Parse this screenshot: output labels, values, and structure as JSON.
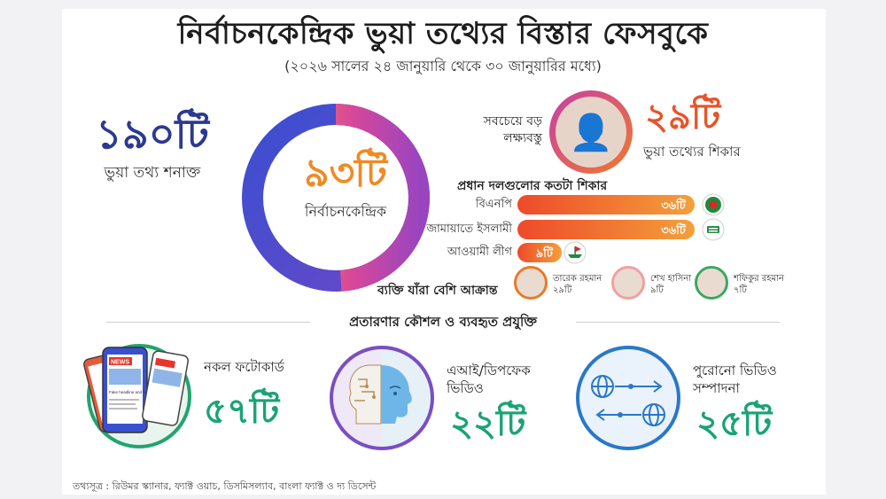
{
  "header": {
    "title": "নির্বাচনকেন্দ্রিক ভুয়া তথ্যের বিস্তার ফেসবুকে",
    "subtitle": "(২০২৬ সালের ২৪ জানুয়ারি থেকে ৩০ জানুয়ারির মধ্যে)"
  },
  "total": {
    "value": "১৯০টি",
    "label": "ভুয়া তথ্য শনাক্ত"
  },
  "election": {
    "value": "৯৩টি",
    "label": "নির্বাচনকেন্দ্রিক",
    "fraction": 0.49
  },
  "target": {
    "label_line1": "সবচেয়ে বড়",
    "label_line2": "লক্ষ্যবস্তু",
    "value": "২৯টি",
    "label": "ভুয়া তথ্যের শিকার",
    "portrait_icon": "person-portrait"
  },
  "parties": {
    "title": "প্রধান দলগুলোর কতটা শিকার",
    "items": [
      {
        "name": "বিএনপি",
        "value": "৩৬টি",
        "count": 36,
        "logo": "bnp-logo"
      },
      {
        "name": "জামায়াতে ইসলামী",
        "value": "৩৬টি",
        "count": 36,
        "logo": "jamaat-logo"
      },
      {
        "name": "আওয়ামী লীগ",
        "value": "৯টি",
        "count": 9,
        "logo": "awami-league-logo"
      }
    ]
  },
  "persons": {
    "label": "ব্যক্তি যাঁরা বেশি আক্রান্ত",
    "items": [
      {
        "name": "তারেক রহমান",
        "value": "২৯টি",
        "border": "#e87a2a"
      },
      {
        "name": "শেখ হাসিনা",
        "value": "৯টি",
        "border": "#f0a0a0"
      },
      {
        "name": "শফিকুর রহমান",
        "value": "৭টি",
        "border": "#3aa860"
      }
    ]
  },
  "techniques": {
    "title": "প্রতারণার কৌশল ও ব্যবহৃত প্রযুক্তি",
    "items": [
      {
        "label_line1": "নকল ফটোকার্ড",
        "label_line2": "",
        "value": "৫৭টি",
        "icon": "phone-news-icon"
      },
      {
        "label_line1": "এআই/ডিপফেক",
        "label_line2": "ভিডিও",
        "value": "২২টি",
        "icon": "ai-head-icon"
      },
      {
        "label_line1": "পুরোনো ভিডিও",
        "label_line2": "সম্পাদনা",
        "value": "২৫টি",
        "icon": "globe-exchange-icon"
      }
    ],
    "phone_badge": "NEWS",
    "phone_text": "Fake headline and fake location"
  },
  "source": "তথ্যসূত্র : রিউমর স্ক্যানার, ফ্যাক্ট ওয়াচ, ডিসমিসল্যাব, বাংলা ফ্যাক্ট ও দ্য ডিসেন্ট",
  "colors": {
    "navy": "#2b3a8f",
    "orange": "#f08a24",
    "green": "#1aa374",
    "red": "#e8542a"
  }
}
